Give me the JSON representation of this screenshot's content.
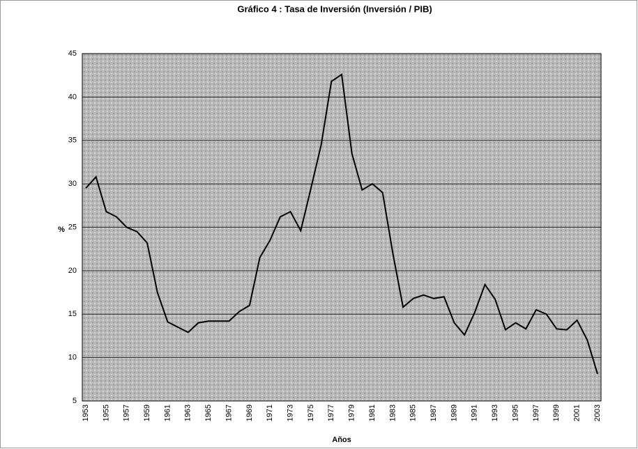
{
  "chart_data": {
    "type": "line",
    "title": "Gráfico 4 : Tasa de Inversión (Inversión / PIB)",
    "x_label": "Años",
    "y_label": "%",
    "categories": [
      "1953",
      null,
      "1955",
      null,
      "1957",
      null,
      "1959",
      null,
      "1961",
      null,
      "1963",
      null,
      "1965",
      null,
      "1967",
      null,
      "1969",
      null,
      "1971",
      null,
      "1973",
      null,
      "1975",
      null,
      "1977",
      null,
      "1979",
      null,
      "1981",
      null,
      "1983",
      null,
      "1985",
      null,
      "1987",
      null,
      "1989",
      null,
      "1991",
      null,
      "1993",
      null,
      "1995",
      null,
      "1997",
      null,
      "1999",
      null,
      "2001",
      null,
      "2003"
    ],
    "series": [
      {
        "name": "Tasa de Inversión",
        "color": "#000000",
        "values": [
          29.5,
          30.8,
          26.8,
          26.2,
          25,
          24.5,
          23.2,
          17.5,
          14.1,
          13.5,
          12.9,
          14,
          14.2,
          14.2,
          14.2,
          15.3,
          16,
          21.5,
          23.5,
          26.2,
          26.8,
          24.6,
          29.5,
          34.5,
          41.8,
          42.6,
          33.5,
          29.3,
          30,
          29,
          22,
          15.8,
          16.8,
          17.2,
          16.8,
          17,
          14,
          12.6,
          15.2,
          18.4,
          16.7,
          13.2,
          14,
          13.3,
          15.5,
          15,
          13.3,
          13.2,
          14.3,
          12,
          8.1
        ]
      }
    ],
    "ylim": [
      5,
      45
    ],
    "yticks": [
      5,
      10,
      15,
      20,
      25,
      30,
      35,
      40,
      45
    ],
    "grid": true
  }
}
